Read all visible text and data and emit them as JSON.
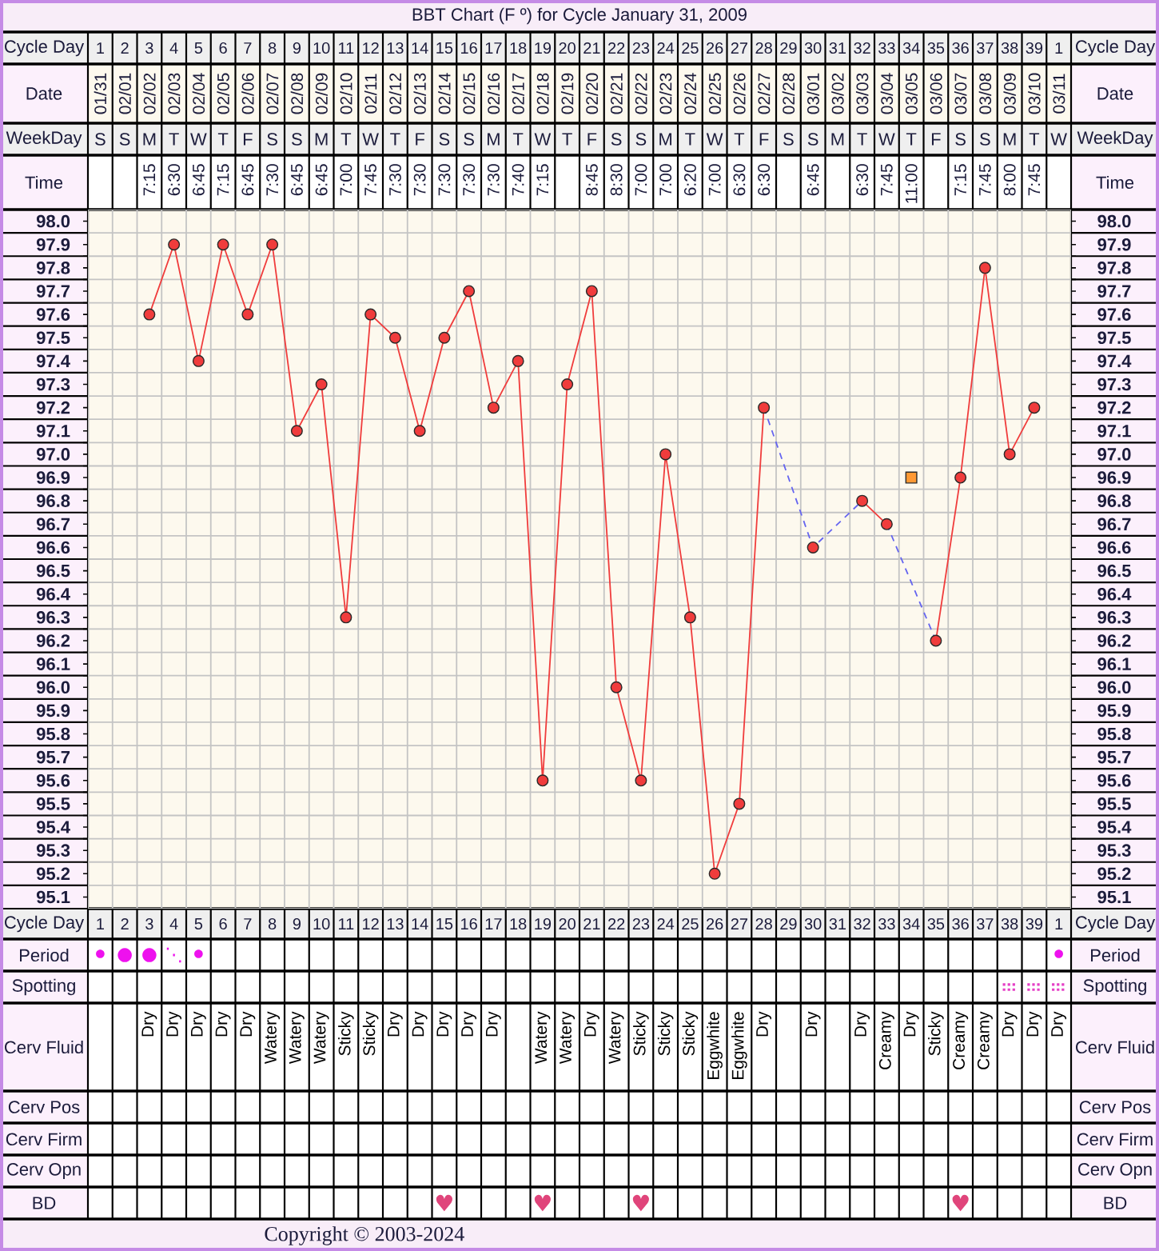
{
  "chart_data": [
    {
      "type": "heatmap",
      "title": "BBT Chart (F º) for Cycle January 31, 2009",
      "xlabel": "Cycle Day",
      "categories": [
        "1",
        "2",
        "3",
        "4",
        "5",
        "6",
        "7",
        "8",
        "9",
        "10",
        "11",
        "12",
        "13",
        "14",
        "15",
        "16",
        "17",
        "18",
        "19",
        "20",
        "21",
        "22",
        "23",
        "24",
        "25",
        "26",
        "27",
        "28",
        "29",
        "30",
        "31",
        "32",
        "33",
        "34",
        "35",
        "36",
        "37",
        "38",
        "39",
        "1"
      ],
      "y_categories": [
        "Date",
        "WeekDay",
        "Time"
      ],
      "y2_categories": [
        "Date",
        "WeekDay",
        "Time"
      ],
      "cells": [
        [
          null,
          null,
          null,
          null,
          null,
          null,
          null,
          null,
          null,
          null,
          null,
          null,
          null,
          null,
          null,
          null,
          null,
          null,
          null,
          null,
          null,
          null,
          null,
          null,
          null,
          null,
          null,
          null,
          null,
          null,
          null,
          null,
          null,
          null,
          null,
          null,
          null,
          null,
          null,
          null
        ],
        [
          null,
          null,
          null,
          null,
          null,
          null,
          null,
          null,
          null,
          null,
          null,
          null,
          null,
          null,
          null,
          null,
          null,
          null,
          null,
          null,
          null,
          null,
          null,
          null,
          null,
          null,
          null,
          null,
          null,
          null,
          null,
          null,
          null,
          null,
          null,
          null,
          null,
          null,
          null,
          null
        ],
        [
          null,
          null,
          null,
          null,
          null,
          null,
          null,
          null,
          null,
          null,
          null,
          null,
          null,
          null,
          null,
          null,
          null,
          null,
          null,
          null,
          null,
          null,
          null,
          null,
          null,
          null,
          null,
          null,
          null,
          null,
          null,
          null,
          null,
          null,
          null,
          null,
          null,
          null,
          null,
          null
        ]
      ],
      "cell_labels": [
        [
          "01/31",
          "02/01",
          "02/02",
          "02/03",
          "02/04",
          "02/05",
          "02/06",
          "02/07",
          "02/08",
          "02/09",
          "02/10",
          "02/11",
          "02/12",
          "02/13",
          "02/14",
          "02/15",
          "02/16",
          "02/17",
          "02/18",
          "02/19",
          "02/20",
          "02/21",
          "02/22",
          "02/23",
          "02/24",
          "02/25",
          "02/26",
          "02/27",
          "02/28",
          "03/01",
          "03/02",
          "03/03",
          "03/04",
          "03/05",
          "03/06",
          "03/07",
          "03/08",
          "03/09",
          "03/10",
          "03/11"
        ],
        [
          "S",
          "S",
          "M",
          "T",
          "W",
          "T",
          "F",
          "S",
          "S",
          "M",
          "T",
          "W",
          "T",
          "F",
          "S",
          "S",
          "M",
          "T",
          "W",
          "T",
          "F",
          "S",
          "S",
          "M",
          "T",
          "W",
          "T",
          "F",
          "S",
          "S",
          "M",
          "T",
          "W",
          "T",
          "F",
          "S",
          "S",
          "M",
          "T",
          "W"
        ],
        [
          null,
          null,
          "7:15",
          "6:30",
          "6:45",
          "7:15",
          "6:45",
          "7:30",
          "6:45",
          "6:45",
          "7:00",
          "7:45",
          "7:30",
          "7:30",
          "7:30",
          "7:30",
          "7:30",
          "7:40",
          "7:15",
          null,
          "8:45",
          "8:30",
          "7:00",
          "7:00",
          "6:20",
          "7:00",
          "6:30",
          "6:30",
          null,
          "6:45",
          null,
          "6:30",
          "7:45",
          "11:00",
          null,
          "7:15",
          "7:45",
          "8:00",
          "7:45",
          null
        ]
      ],
      "grid": true
    },
    {
      "type": "line",
      "xlabel": "Cycle Day",
      "categories": [
        "1",
        "2",
        "3",
        "4",
        "5",
        "6",
        "7",
        "8",
        "9",
        "10",
        "11",
        "12",
        "13",
        "14",
        "15",
        "16",
        "17",
        "18",
        "19",
        "20",
        "21",
        "22",
        "23",
        "24",
        "25",
        "26",
        "27",
        "28",
        "29",
        "30",
        "31",
        "32",
        "33",
        "34",
        "35",
        "36",
        "37",
        "38",
        "39",
        "1"
      ],
      "ylim": [
        95.05,
        98.05
      ],
      "yticks": [
        {
          "value": 95.05,
          "label": null
        },
        95.1,
        {
          "value": 95.15,
          "label": null
        },
        95.2,
        {
          "value": 95.25,
          "label": null
        },
        95.3,
        {
          "value": 95.35,
          "label": null
        },
        95.4,
        {
          "value": 95.45,
          "label": null
        },
        95.5,
        {
          "value": 95.55,
          "label": null
        },
        95.6,
        {
          "value": 95.65,
          "label": null
        },
        95.7,
        {
          "value": 95.75,
          "label": null
        },
        95.8,
        {
          "value": 95.85,
          "label": null
        },
        95.9,
        {
          "value": 95.95,
          "label": null
        },
        {
          "value": 96.0,
          "label": "96.0"
        },
        {
          "value": 96.05,
          "label": null
        },
        96.1,
        {
          "value": 96.15,
          "label": null
        },
        96.2,
        {
          "value": 96.25,
          "label": null
        },
        96.3,
        {
          "value": 96.35,
          "label": null
        },
        96.4,
        {
          "value": 96.45,
          "label": null
        },
        96.5,
        {
          "value": 96.55,
          "label": null
        },
        96.6,
        {
          "value": 96.65,
          "label": null
        },
        96.7,
        {
          "value": 96.75,
          "label": null
        },
        96.8,
        {
          "value": 96.85,
          "label": null
        },
        96.9,
        {
          "value": 96.95,
          "label": null
        },
        {
          "value": 97.0,
          "label": "97.0"
        },
        {
          "value": 97.05,
          "label": null
        },
        97.1,
        {
          "value": 97.15,
          "label": null
        },
        97.2,
        {
          "value": 97.25,
          "label": null
        },
        97.3,
        {
          "value": 97.35,
          "label": null
        },
        97.4,
        {
          "value": 97.45,
          "label": null
        },
        97.5,
        {
          "value": 97.55,
          "label": null
        },
        97.6,
        {
          "value": 97.65,
          "label": null
        },
        97.7,
        {
          "value": 97.75,
          "label": null
        },
        97.8,
        {
          "value": 97.85,
          "label": null
        },
        97.9,
        {
          "value": 97.95,
          "label": null
        },
        {
          "value": 98.0,
          "label": "98.0"
        },
        {
          "value": 98.05,
          "label": null
        }
      ],
      "y2lim": [
        95.05,
        98.05
      ],
      "y2ticks": [
        {
          "value": 95.05,
          "label": null
        },
        95.1,
        {
          "value": 95.15,
          "label": null
        },
        95.2,
        {
          "value": 95.25,
          "label": null
        },
        95.3,
        {
          "value": 95.35,
          "label": null
        },
        95.4,
        {
          "value": 95.45,
          "label": null
        },
        95.5,
        {
          "value": 95.55,
          "label": null
        },
        95.6,
        {
          "value": 95.65,
          "label": null
        },
        95.7,
        {
          "value": 95.75,
          "label": null
        },
        95.8,
        {
          "value": 95.85,
          "label": null
        },
        95.9,
        {
          "value": 95.95,
          "label": null
        },
        {
          "value": 96.0,
          "label": "96.0"
        },
        {
          "value": 96.05,
          "label": null
        },
        96.1,
        {
          "value": 96.15,
          "label": null
        },
        96.2,
        {
          "value": 96.25,
          "label": null
        },
        96.3,
        {
          "value": 96.35,
          "label": null
        },
        96.4,
        {
          "value": 96.45,
          "label": null
        },
        96.5,
        {
          "value": 96.55,
          "label": null
        },
        96.6,
        {
          "value": 96.65,
          "label": null
        },
        96.7,
        {
          "value": 96.75,
          "label": null
        },
        96.8,
        {
          "value": 96.85,
          "label": null
        },
        96.9,
        {
          "value": 96.95,
          "label": null
        },
        {
          "value": 97.0,
          "label": "97.0"
        },
        {
          "value": 97.05,
          "label": null
        },
        97.1,
        {
          "value": 97.15,
          "label": null
        },
        97.2,
        {
          "value": 97.25,
          "label": null
        },
        97.3,
        {
          "value": 97.35,
          "label": null
        },
        97.4,
        {
          "value": 97.45,
          "label": null
        },
        97.5,
        {
          "value": 97.55,
          "label": null
        },
        97.6,
        {
          "value": 97.65,
          "label": null
        },
        97.7,
        {
          "value": 97.75,
          "label": null
        },
        97.8,
        {
          "value": 97.85,
          "label": null
        },
        97.9,
        {
          "value": 97.95,
          "label": null
        },
        {
          "value": 98.0,
          "label": "98.0"
        },
        {
          "value": 98.05,
          "label": null
        }
      ],
      "grid": true,
      "series": [
        {
          "type": "line",
          "color": "#6464f0",
          "marker": "none",
          "line_style": "dashed",
          "x": [
            "28",
            "30",
            "32"
          ],
          "values": [
            97.2,
            96.6,
            96.8
          ]
        },
        {
          "type": "line",
          "color": "#6464f0",
          "marker": "none",
          "line_style": "dashed",
          "x": [
            "33",
            "35"
          ],
          "values": [
            96.7,
            96.2
          ]
        },
        {
          "type": "line",
          "color": "#f03c3c",
          "marker": "circle",
          "line_style": "solid",
          "values": [
            null,
            null,
            97.6,
            97.9,
            97.4,
            97.9,
            97.6,
            97.9,
            97.1,
            97.3,
            96.3,
            97.6,
            97.5,
            97.1,
            97.5,
            97.7,
            97.2,
            97.4,
            95.6,
            97.3,
            97.7,
            96.0,
            95.6,
            97.0,
            96.3,
            95.2,
            95.5,
            97.2,
            null,
            96.6,
            null,
            96.8,
            96.7,
            null,
            96.2,
            96.9,
            97.8,
            97.0,
            97.2,
            null
          ]
        },
        {
          "type": "scatter",
          "color": "#ff9933",
          "marker": "square",
          "values": [
            null,
            null,
            null,
            null,
            null,
            null,
            null,
            null,
            null,
            null,
            null,
            null,
            null,
            null,
            null,
            null,
            null,
            null,
            null,
            null,
            null,
            null,
            null,
            null,
            null,
            null,
            null,
            null,
            null,
            null,
            null,
            null,
            null,
            96.9,
            null,
            null,
            null,
            null,
            null,
            null
          ]
        }
      ]
    },
    {
      "type": "heatmap",
      "categories": [
        null,
        null,
        null,
        null,
        null,
        null,
        null,
        null,
        null,
        null,
        null,
        null,
        null,
        null,
        null,
        null,
        null,
        null,
        null,
        null,
        null,
        null,
        null,
        null,
        null,
        null,
        null,
        null,
        null,
        null,
        null,
        null,
        null,
        null,
        null,
        null,
        null,
        null,
        null,
        null
      ],
      "y_categories": [
        "Period",
        "Spotting",
        "Cerv Fluid",
        "Cerv Pos",
        "Cerv Firm",
        "Cerv Opn",
        "BD"
      ],
      "y2_categories": [
        "Period",
        "Spotting",
        "Cerv Fluid",
        "Cerv Pos",
        "Cerv Firm",
        "Cerv Opn",
        "BD"
      ],
      "cells": [
        [
          null,
          null,
          null,
          null,
          null,
          null,
          null,
          null,
          null,
          null,
          null,
          null,
          null,
          null,
          null,
          null,
          null,
          null,
          null,
          null,
          null,
          null,
          null,
          null,
          null,
          null,
          null,
          null,
          null,
          null,
          null,
          null,
          null,
          null,
          null,
          null,
          null,
          null,
          null,
          null
        ],
        [
          null,
          null,
          null,
          null,
          null,
          null,
          null,
          null,
          null,
          null,
          null,
          null,
          null,
          null,
          null,
          null,
          null,
          null,
          null,
          null,
          null,
          null,
          null,
          null,
          null,
          null,
          null,
          null,
          null,
          null,
          null,
          null,
          null,
          null,
          null,
          null,
          null,
          null,
          null,
          null
        ],
        [
          null,
          null,
          null,
          null,
          null,
          null,
          null,
          null,
          null,
          null,
          null,
          null,
          null,
          null,
          null,
          null,
          null,
          null,
          null,
          null,
          null,
          null,
          null,
          null,
          null,
          null,
          null,
          null,
          null,
          null,
          null,
          null,
          null,
          null,
          null,
          null,
          null,
          null,
          null,
          null
        ],
        [
          null,
          null,
          null,
          null,
          null,
          null,
          null,
          null,
          null,
          null,
          null,
          null,
          null,
          null,
          null,
          null,
          null,
          null,
          null,
          null,
          null,
          null,
          null,
          null,
          null,
          null,
          null,
          null,
          null,
          null,
          null,
          null,
          null,
          null,
          null,
          null,
          null,
          null,
          null,
          null
        ],
        [
          null,
          null,
          null,
          null,
          null,
          null,
          null,
          null,
          null,
          null,
          null,
          null,
          null,
          null,
          null,
          null,
          null,
          null,
          null,
          null,
          null,
          null,
          null,
          null,
          null,
          null,
          null,
          null,
          null,
          null,
          null,
          null,
          null,
          null,
          null,
          null,
          null,
          null,
          null,
          null
        ],
        [
          null,
          null,
          null,
          null,
          null,
          null,
          null,
          null,
          null,
          null,
          null,
          null,
          null,
          null,
          null,
          null,
          null,
          null,
          null,
          null,
          null,
          null,
          null,
          null,
          null,
          null,
          null,
          null,
          null,
          null,
          null,
          null,
          null,
          null,
          null,
          null,
          null,
          null,
          null,
          null
        ],
        [
          null,
          null,
          null,
          null,
          null,
          null,
          null,
          null,
          null,
          null,
          null,
          null,
          null,
          null,
          null,
          null,
          null,
          null,
          null,
          null,
          null,
          null,
          null,
          null,
          null,
          null,
          null,
          null,
          null,
          null,
          null,
          null,
          null,
          null,
          null,
          null,
          null,
          null,
          null,
          null
        ]
      ],
      "cell_labels": [
        [
          "⚫",
          "●",
          "●",
          "⋱",
          "⚫",
          null,
          null,
          null,
          null,
          null,
          null,
          null,
          null,
          null,
          null,
          null,
          null,
          null,
          null,
          null,
          null,
          null,
          null,
          null,
          null,
          null,
          null,
          null,
          null,
          null,
          null,
          null,
          null,
          null,
          null,
          null,
          null,
          null,
          null,
          "⚫"
        ],
        [
          null,
          null,
          null,
          null,
          null,
          null,
          null,
          null,
          null,
          null,
          null,
          null,
          null,
          null,
          null,
          null,
          null,
          null,
          null,
          null,
          null,
          null,
          null,
          null,
          null,
          null,
          null,
          null,
          null,
          null,
          null,
          null,
          null,
          null,
          null,
          null,
          null,
          "⠿",
          "⠿",
          "⠿"
        ],
        [
          null,
          null,
          "Dry",
          "Dry",
          "Dry",
          "Dry",
          "Dry",
          "Watery",
          "Watery",
          "Watery",
          "Sticky",
          "Sticky",
          "Dry",
          "Dry",
          "Dry",
          "Dry",
          "Dry",
          null,
          "Watery",
          "Watery",
          "Dry",
          "Watery",
          "Sticky",
          "Sticky",
          "Sticky",
          "Eggwhite",
          "Eggwhite",
          "Dry",
          null,
          "Dry",
          null,
          "Dry",
          "Creamy",
          "Dry",
          "Sticky",
          "Creamy",
          "Creamy",
          "Dry",
          "Dry",
          "Dry"
        ],
        [
          null,
          null,
          null,
          null,
          null,
          null,
          null,
          null,
          null,
          null,
          null,
          null,
          null,
          null,
          null,
          null,
          null,
          null,
          null,
          null,
          null,
          null,
          null,
          null,
          null,
          null,
          null,
          null,
          null,
          null,
          null,
          null,
          null,
          null,
          null,
          null,
          null,
          null,
          null,
          null
        ],
        [
          null,
          null,
          null,
          null,
          null,
          null,
          null,
          null,
          null,
          null,
          null,
          null,
          null,
          null,
          null,
          null,
          null,
          null,
          null,
          null,
          null,
          null,
          null,
          null,
          null,
          null,
          null,
          null,
          null,
          null,
          null,
          null,
          null,
          null,
          null,
          null,
          null,
          null,
          null,
          null
        ],
        [
          null,
          null,
          null,
          null,
          null,
          null,
          null,
          null,
          null,
          null,
          null,
          null,
          null,
          null,
          null,
          null,
          null,
          null,
          null,
          null,
          null,
          null,
          null,
          null,
          null,
          null,
          null,
          null,
          null,
          null,
          null,
          null,
          null,
          null,
          null,
          null,
          null,
          null,
          null,
          null
        ],
        [
          null,
          null,
          null,
          null,
          null,
          null,
          null,
          null,
          null,
          null,
          null,
          null,
          null,
          null,
          "♥",
          null,
          null,
          null,
          "♥",
          null,
          null,
          null,
          "♥",
          null,
          null,
          null,
          null,
          null,
          null,
          null,
          null,
          null,
          null,
          null,
          null,
          "♥",
          null,
          null,
          null,
          null
        ]
      ],
      "colors": [
        "#ee11ee",
        "#e53fc6",
        "#000000",
        "#000000",
        "#000000",
        "#000000",
        "#e0457b"
      ],
      "grid": true,
      "annotations": [
        "Copyright © 2003-2024"
      ]
    }
  ]
}
